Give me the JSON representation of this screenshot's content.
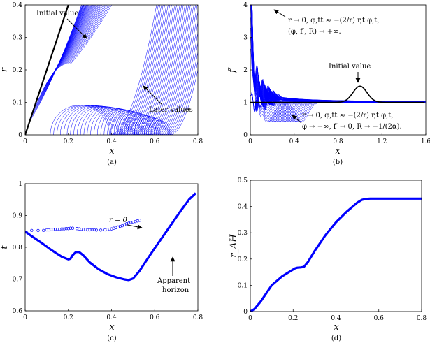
{
  "colors": {
    "blue": "#0000ff",
    "black": "#000000",
    "axis": "#000000"
  },
  "chart_data": [
    {
      "id": "a",
      "type": "line",
      "caption": "(a)",
      "xlabel": "x",
      "ylabel": "r",
      "xlim": [
        0,
        0.8
      ],
      "ylim": [
        0,
        0.4
      ],
      "xticks": [
        "0",
        "0.2",
        "0.4",
        "0.6",
        "0.8"
      ],
      "yticks": [
        "0",
        "0.1",
        "0.2",
        "0.3",
        "0.4"
      ],
      "annotations": [
        "Initial value",
        "Later values"
      ],
      "series": [
        {
          "role": "initial",
          "color": "#000000",
          "x": [
            0,
            0.2
          ],
          "y": [
            0,
            0.4
          ]
        },
        {
          "role": "later",
          "color": "#0000ff",
          "x": [
            0.02,
            0.22,
            0.42,
            0.62
          ],
          "y": [
            0.04,
            0.4,
            0.4,
            0.4
          ]
        }
      ]
    },
    {
      "id": "b",
      "type": "line",
      "caption": "(b)",
      "xlabel": "x",
      "ylabel": "f′",
      "xlim": [
        0,
        1.6
      ],
      "ylim": [
        0,
        4
      ],
      "xticks": [
        "0",
        "0.4",
        "0.8",
        "1.2",
        "1.6"
      ],
      "yticks": [
        "0",
        "1",
        "2",
        "3",
        "4"
      ],
      "annotations": [
        "r → 0,  φ,tt ≈ −(2/r) r,t φ,t,",
        "(φ, f′, R) → +∞.",
        "Initial value",
        "r → 0,  φ,tt ≈ −(2/r) r,t φ,t,",
        "φ → −∞,   f′ → 0,  R → −1/(2α)."
      ],
      "series": [
        {
          "role": "initial",
          "color": "#000000",
          "x": [
            0,
            0.8,
            0.9,
            1.0,
            1.1,
            1.2,
            1.6
          ],
          "y": [
            1,
            1,
            1.2,
            1.5,
            1.2,
            1,
            1
          ]
        }
      ]
    },
    {
      "id": "c",
      "type": "scatter",
      "caption": "(c)",
      "xlabel": "x",
      "ylabel": "t",
      "xlim": [
        0,
        0.8
      ],
      "ylim": [
        0.6,
        1
      ],
      "xticks": [
        "0",
        "0.2",
        "0.4",
        "0.6",
        "0.8"
      ],
      "yticks": [
        "0.6",
        "0.7",
        "0.8",
        "0.9",
        "1"
      ],
      "annotations": [
        "r = 0",
        "Apparent",
        "horizon"
      ],
      "series": [
        {
          "name": "r = 0",
          "color": "#0000ff",
          "x": [
            0.005,
            0.03,
            0.06,
            0.085,
            0.1,
            0.11,
            0.12,
            0.13,
            0.14,
            0.15,
            0.16,
            0.17,
            0.18,
            0.19,
            0.2,
            0.21,
            0.22,
            0.24,
            0.25,
            0.26,
            0.27,
            0.28,
            0.29,
            0.3,
            0.31,
            0.32,
            0.33,
            0.35,
            0.37,
            0.38,
            0.39,
            0.4,
            0.41,
            0.42,
            0.43,
            0.44,
            0.45,
            0.46,
            0.47,
            0.48,
            0.49,
            0.5,
            0.51,
            0.52,
            0.53
          ],
          "y": [
            0.848,
            0.853,
            0.853,
            0.853,
            0.855,
            0.855,
            0.856,
            0.856,
            0.857,
            0.857,
            0.857,
            0.858,
            0.858,
            0.859,
            0.859,
            0.86,
            0.86,
            0.859,
            0.858,
            0.857,
            0.856,
            0.856,
            0.855,
            0.855,
            0.855,
            0.855,
            0.854,
            0.854,
            0.855,
            0.856,
            0.857,
            0.858,
            0.86,
            0.862,
            0.864,
            0.866,
            0.868,
            0.871,
            0.874,
            0.876,
            0.878,
            0.879,
            0.881,
            0.883,
            0.885
          ]
        },
        {
          "name": "Apparent horizon",
          "color": "#0000ff",
          "x": [
            0,
            0.02,
            0.05,
            0.08,
            0.11,
            0.14,
            0.17,
            0.2,
            0.21,
            0.22,
            0.235,
            0.25,
            0.27,
            0.3,
            0.34,
            0.38,
            0.42,
            0.46,
            0.48,
            0.5,
            0.53,
            0.56,
            0.6,
            0.64,
            0.68,
            0.72,
            0.76,
            0.79
          ],
          "y": [
            0.85,
            0.84,
            0.826,
            0.812,
            0.797,
            0.783,
            0.77,
            0.762,
            0.764,
            0.775,
            0.785,
            0.785,
            0.774,
            0.752,
            0.731,
            0.716,
            0.706,
            0.699,
            0.697,
            0.702,
            0.726,
            0.757,
            0.797,
            0.836,
            0.875,
            0.914,
            0.951,
            0.97
          ]
        }
      ]
    },
    {
      "id": "d",
      "type": "line",
      "caption": "(d)",
      "xlabel": "x",
      "ylabel": "r_AH",
      "xlim": [
        0,
        0.8
      ],
      "ylim": [
        0,
        0.5
      ],
      "xticks": [
        "0",
        "0.2",
        "0.4",
        "0.6",
        "0.8"
      ],
      "yticks": [
        "0",
        "0.1",
        "0.2",
        "0.3",
        "0.4",
        "0.5"
      ],
      "series": [
        {
          "color": "#0000ff",
          "x": [
            0,
            0.02,
            0.05,
            0.1,
            0.15,
            0.2,
            0.21,
            0.22,
            0.235,
            0.25,
            0.27,
            0.3,
            0.35,
            0.4,
            0.45,
            0.5,
            0.52,
            0.54,
            0.56,
            0.6,
            0.7,
            0.8
          ],
          "y": [
            0,
            0.01,
            0.04,
            0.1,
            0.135,
            0.16,
            0.165,
            0.167,
            0.168,
            0.17,
            0.19,
            0.23,
            0.29,
            0.34,
            0.38,
            0.415,
            0.425,
            0.429,
            0.43,
            0.43,
            0.43,
            0.43
          ]
        }
      ]
    }
  ]
}
